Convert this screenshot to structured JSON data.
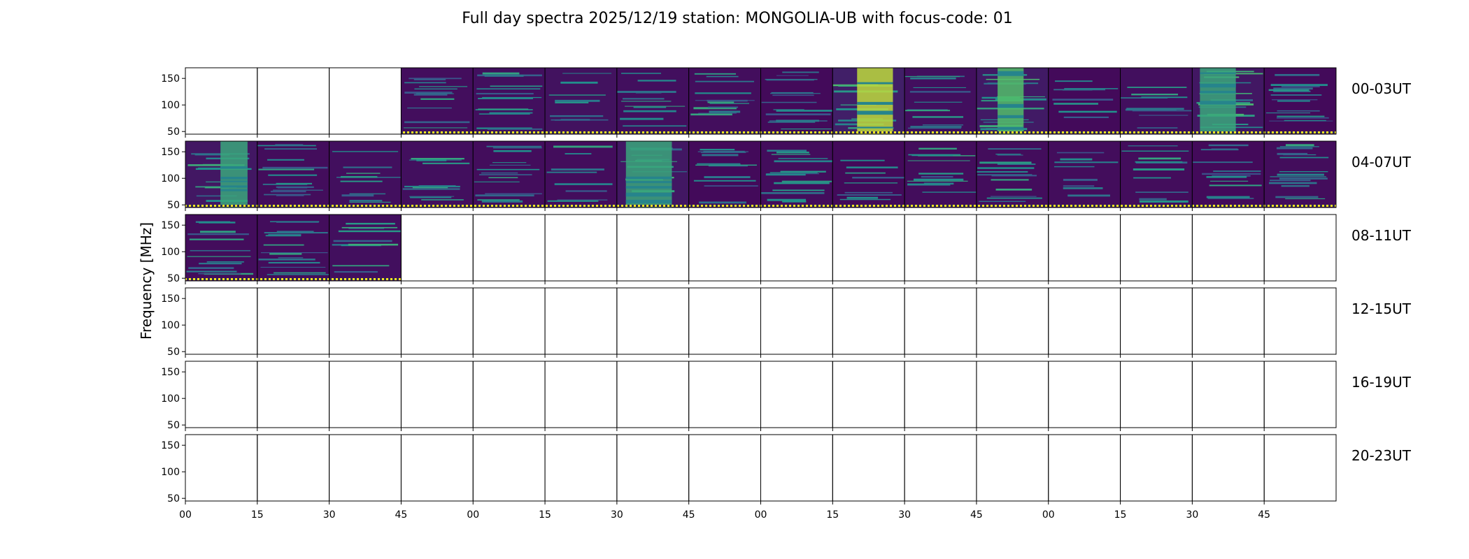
{
  "chart_data": {
    "type": "heatmap",
    "title": "Full day spectra 2025/12/19 station: MONGOLIA-UB with focus-code: 01",
    "ylabel": "Frequency [MHz]",
    "xlabel": "",
    "ylim": [
      45,
      170
    ],
    "yticks": [
      50,
      100,
      150
    ],
    "xtick_labels": [
      "00",
      "15",
      "30",
      "45",
      "00",
      "15",
      "30",
      "45",
      "00",
      "15",
      "30",
      "45",
      "00",
      "15",
      "30",
      "45"
    ],
    "panels_per_row": 16,
    "minutes_per_panel": 15,
    "colormap": [
      "#440154",
      "#3b528b",
      "#21918c",
      "#5ec962",
      "#fde725"
    ],
    "rows": [
      {
        "label": "00-03UT",
        "panels": [
          {
            "has_data": false,
            "intensity": 0
          },
          {
            "has_data": false,
            "intensity": 0
          },
          {
            "has_data": false,
            "intensity": 0
          },
          {
            "has_data": true,
            "intensity": 0.25
          },
          {
            "has_data": true,
            "intensity": 0.3
          },
          {
            "has_data": true,
            "intensity": 0.4
          },
          {
            "has_data": true,
            "intensity": 0.3
          },
          {
            "has_data": true,
            "intensity": 0.25
          },
          {
            "has_data": true,
            "intensity": 0.1
          },
          {
            "has_data": true,
            "intensity": 0.9
          },
          {
            "has_data": true,
            "intensity": 0.3
          },
          {
            "has_data": true,
            "intensity": 0.7
          },
          {
            "has_data": true,
            "intensity": 0.1
          },
          {
            "has_data": true,
            "intensity": 0.3
          },
          {
            "has_data": true,
            "intensity": 0.6
          },
          {
            "has_data": true,
            "intensity": 0.1
          }
        ]
      },
      {
        "label": "04-07UT",
        "panels": [
          {
            "has_data": true,
            "intensity": 0.6
          },
          {
            "has_data": true,
            "intensity": 0.2
          },
          {
            "has_data": true,
            "intensity": 0.3
          },
          {
            "has_data": true,
            "intensity": 0.3
          },
          {
            "has_data": true,
            "intensity": 0.2
          },
          {
            "has_data": true,
            "intensity": 0.2
          },
          {
            "has_data": true,
            "intensity": 0.6
          },
          {
            "has_data": true,
            "intensity": 0.1
          },
          {
            "has_data": true,
            "intensity": 0.2
          },
          {
            "has_data": true,
            "intensity": 0.1
          },
          {
            "has_data": true,
            "intensity": 0.2
          },
          {
            "has_data": true,
            "intensity": 0.2
          },
          {
            "has_data": true,
            "intensity": 0.2
          },
          {
            "has_data": true,
            "intensity": 0.2
          },
          {
            "has_data": true,
            "intensity": 0.1
          },
          {
            "has_data": true,
            "intensity": 0.2
          }
        ]
      },
      {
        "label": "08-11UT",
        "panels": [
          {
            "has_data": true,
            "intensity": 0.2
          },
          {
            "has_data": true,
            "intensity": 0.2
          },
          {
            "has_data": true,
            "intensity": 0.3
          },
          {
            "has_data": false,
            "intensity": 0
          },
          {
            "has_data": false,
            "intensity": 0
          },
          {
            "has_data": false,
            "intensity": 0
          },
          {
            "has_data": false,
            "intensity": 0
          },
          {
            "has_data": false,
            "intensity": 0
          },
          {
            "has_data": false,
            "intensity": 0
          },
          {
            "has_data": false,
            "intensity": 0
          },
          {
            "has_data": false,
            "intensity": 0
          },
          {
            "has_data": false,
            "intensity": 0
          },
          {
            "has_data": false,
            "intensity": 0
          },
          {
            "has_data": false,
            "intensity": 0
          },
          {
            "has_data": false,
            "intensity": 0
          },
          {
            "has_data": false,
            "intensity": 0
          }
        ]
      },
      {
        "label": "12-15UT",
        "panels": [
          {
            "has_data": false,
            "intensity": 0
          },
          {
            "has_data": false,
            "intensity": 0
          },
          {
            "has_data": false,
            "intensity": 0
          },
          {
            "has_data": false,
            "intensity": 0
          },
          {
            "has_data": false,
            "intensity": 0
          },
          {
            "has_data": false,
            "intensity": 0
          },
          {
            "has_data": false,
            "intensity": 0
          },
          {
            "has_data": false,
            "intensity": 0
          },
          {
            "has_data": false,
            "intensity": 0
          },
          {
            "has_data": false,
            "intensity": 0
          },
          {
            "has_data": false,
            "intensity": 0
          },
          {
            "has_data": false,
            "intensity": 0
          },
          {
            "has_data": false,
            "intensity": 0
          },
          {
            "has_data": false,
            "intensity": 0
          },
          {
            "has_data": false,
            "intensity": 0
          },
          {
            "has_data": false,
            "intensity": 0
          }
        ]
      },
      {
        "label": "16-19UT",
        "panels": [
          {
            "has_data": false,
            "intensity": 0
          },
          {
            "has_data": false,
            "intensity": 0
          },
          {
            "has_data": false,
            "intensity": 0
          },
          {
            "has_data": false,
            "intensity": 0
          },
          {
            "has_data": false,
            "intensity": 0
          },
          {
            "has_data": false,
            "intensity": 0
          },
          {
            "has_data": false,
            "intensity": 0
          },
          {
            "has_data": false,
            "intensity": 0
          },
          {
            "has_data": false,
            "intensity": 0
          },
          {
            "has_data": false,
            "intensity": 0
          },
          {
            "has_data": false,
            "intensity": 0
          },
          {
            "has_data": false,
            "intensity": 0
          },
          {
            "has_data": false,
            "intensity": 0
          },
          {
            "has_data": false,
            "intensity": 0
          },
          {
            "has_data": false,
            "intensity": 0
          },
          {
            "has_data": false,
            "intensity": 0
          }
        ]
      },
      {
        "label": "20-23UT",
        "panels": [
          {
            "has_data": false,
            "intensity": 0
          },
          {
            "has_data": false,
            "intensity": 0
          },
          {
            "has_data": false,
            "intensity": 0
          },
          {
            "has_data": false,
            "intensity": 0
          },
          {
            "has_data": false,
            "intensity": 0
          },
          {
            "has_data": false,
            "intensity": 0
          },
          {
            "has_data": false,
            "intensity": 0
          },
          {
            "has_data": false,
            "intensity": 0
          },
          {
            "has_data": false,
            "intensity": 0
          },
          {
            "has_data": false,
            "intensity": 0
          },
          {
            "has_data": false,
            "intensity": 0
          },
          {
            "has_data": false,
            "intensity": 0
          },
          {
            "has_data": false,
            "intensity": 0
          },
          {
            "has_data": false,
            "intensity": 0
          },
          {
            "has_data": false,
            "intensity": 0
          },
          {
            "has_data": false,
            "intensity": 0
          }
        ]
      }
    ]
  }
}
